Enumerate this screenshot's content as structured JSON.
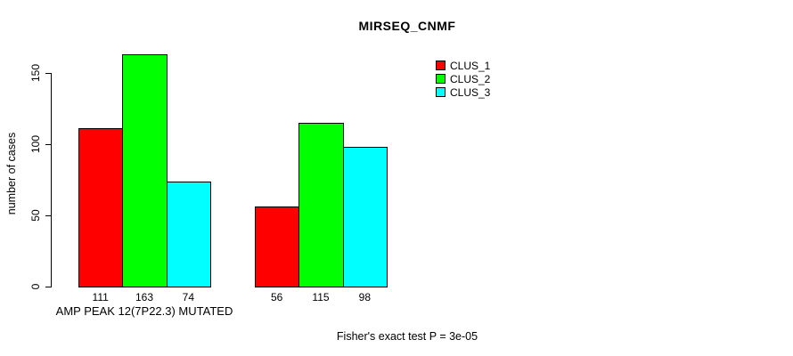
{
  "chart_data": {
    "type": "bar",
    "title": "MIRSEQ_CNMF",
    "ylabel": "number of cases",
    "xlabel": "AMP PEAK 12(7P22.3) MUTATED",
    "footnote": "Fisher's exact test P = 3e-05",
    "yticks": [
      0,
      50,
      100,
      150
    ],
    "ylim": [
      0,
      170
    ],
    "grid": false,
    "legend_position": "top-right",
    "groups": [
      "AMP PEAK 12(7P22.3) MUTATED",
      ""
    ],
    "series": [
      {
        "name": "CLUS_1",
        "color": "#ff0000",
        "values": [
          111,
          56
        ]
      },
      {
        "name": "CLUS_2",
        "color": "#00ff00",
        "values": [
          163,
          115
        ]
      },
      {
        "name": "CLUS_3",
        "color": "#00ffff",
        "values": [
          74,
          98
        ]
      }
    ],
    "bar_value_labels": [
      [
        111,
        163,
        74
      ],
      [
        56,
        115,
        98
      ]
    ],
    "background_color": "#ffffff",
    "axis_color": "#000000"
  }
}
